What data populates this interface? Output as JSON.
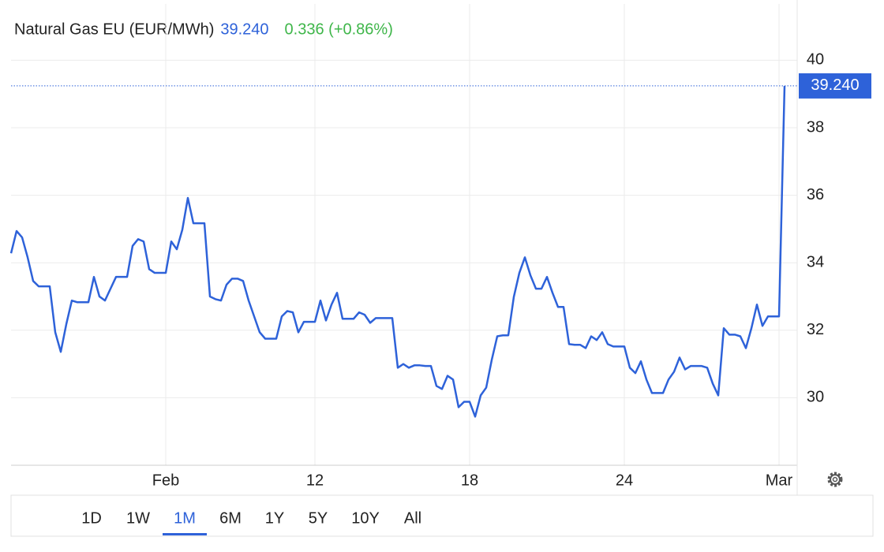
{
  "header": {
    "instrument": "Natural Gas EU (EUR/MWh)",
    "price": "39.240",
    "change": "0.336 (+0.86%)"
  },
  "chart_data": {
    "type": "line",
    "categories": [
      null,
      null,
      null,
      null,
      null,
      null,
      null,
      null,
      null,
      null,
      null,
      null,
      null,
      null,
      null,
      null,
      null,
      null,
      null,
      null,
      null,
      null,
      null,
      null,
      null,
      null,
      null,
      null,
      "Feb",
      null,
      null,
      null,
      null,
      null,
      null,
      null,
      null,
      null,
      null,
      null,
      null,
      null,
      null,
      null,
      null,
      null,
      null,
      null,
      null,
      null,
      null,
      null,
      null,
      null,
      null,
      "12",
      null,
      null,
      null,
      null,
      null,
      null,
      null,
      null,
      null,
      null,
      null,
      null,
      null,
      null,
      null,
      null,
      null,
      null,
      null,
      null,
      null,
      null,
      null,
      null,
      null,
      null,
      null,
      "18",
      null,
      null,
      null,
      null,
      null,
      null,
      null,
      null,
      null,
      null,
      null,
      null,
      null,
      null,
      null,
      null,
      null,
      null,
      null,
      null,
      null,
      null,
      null,
      null,
      null,
      null,
      null,
      "24",
      null,
      null,
      null,
      null,
      null,
      null,
      null,
      null,
      null,
      null,
      null,
      null,
      null,
      null,
      null,
      null,
      null,
      null,
      null,
      null,
      null,
      null,
      null,
      null,
      null,
      null,
      null,
      "Mar",
      null
    ],
    "series": [
      {
        "name": "Natural Gas EU (EUR/MWh)",
        "color": "#2e62d9",
        "values": [
          34.28,
          34.94,
          34.75,
          34.16,
          33.46,
          33.3,
          33.3,
          33.3,
          31.94,
          31.36,
          32.18,
          32.88,
          32.83,
          32.83,
          32.83,
          33.58,
          33.0,
          32.88,
          33.23,
          33.58,
          33.58,
          33.58,
          34.5,
          34.7,
          34.63,
          33.81,
          33.7,
          33.7,
          33.7,
          34.63,
          34.4,
          34.98,
          35.92,
          35.17,
          35.17,
          35.17,
          33.0,
          32.92,
          32.88,
          33.35,
          33.53,
          33.53,
          33.46,
          32.88,
          32.41,
          31.94,
          31.75,
          31.75,
          31.75,
          32.41,
          32.57,
          32.53,
          31.94,
          32.25,
          32.25,
          32.25,
          32.88,
          32.29,
          32.76,
          33.11,
          32.34,
          32.34,
          32.34,
          32.53,
          32.46,
          32.22,
          32.36,
          32.36,
          32.36,
          32.36,
          30.89,
          31.0,
          30.89,
          30.96,
          30.96,
          30.94,
          30.94,
          30.35,
          30.26,
          30.65,
          30.54,
          29.72,
          29.88,
          29.88,
          29.44,
          30.07,
          30.3,
          31.12,
          31.82,
          31.85,
          31.85,
          32.99,
          33.7,
          34.16,
          33.63,
          33.23,
          33.23,
          33.58,
          33.11,
          32.69,
          32.69,
          31.59,
          31.57,
          31.57,
          31.47,
          31.82,
          31.71,
          31.94,
          31.59,
          31.52,
          31.52,
          31.52,
          30.89,
          30.73,
          31.08,
          30.54,
          30.14,
          30.14,
          30.14,
          30.54,
          30.77,
          31.19,
          30.84,
          30.94,
          30.94,
          30.94,
          30.89,
          30.42,
          30.07,
          32.06,
          31.87,
          31.87,
          31.82,
          31.47,
          32.06,
          32.76,
          32.13,
          32.41,
          32.41,
          32.41,
          39.24
        ]
      }
    ],
    "ylim": [
      28,
      40.5
    ],
    "yticks": [
      30,
      32,
      34,
      36,
      38,
      40
    ],
    "grid": true
  },
  "ranges": {
    "buttons": [
      "1D",
      "1W",
      "1M",
      "6M",
      "1Y",
      "5Y",
      "10Y",
      "All"
    ],
    "active": 2
  }
}
